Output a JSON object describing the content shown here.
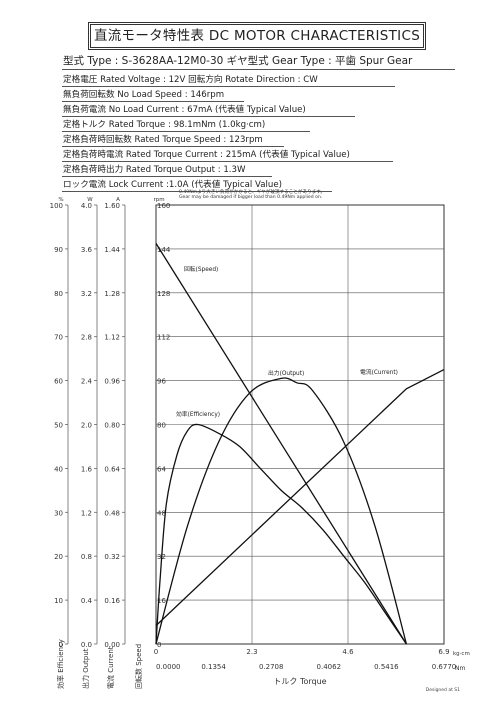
{
  "title": "直流モータ特性表 DC MOTOR CHARACTERISTICS",
  "specs": {
    "model": "型式 Type : S-3628AA-12M0-30   ギヤ型式 Gear Type : 平歯  Spur Gear",
    "lines": [
      "定格電圧 Rated Voltage : 12V   回転方向 Rotate Direction : CW",
      "無負荷回転数 No Load Speed : 146rpm",
      "無負荷電流 No Load Current : 67mA (代表値 Typical Value)",
      "定格トルク Rated Torque : 98.1mNm (1.0kg·cm)",
      "定格負荷時回転数 Rated Torque Speed : 123rpm",
      "定格負荷時電流 Rated Torque Current : 215mA (代表値 Typical Value)",
      "定格負荷時出力 Rated Torque Output : 1.3W",
      "ロック電流 Lock Current :1.0A (代表値 Typical Value)"
    ]
  },
  "notes": [
    "0.49Nmより大きい負荷がかかると、ギヤが破損することがあります。",
    "Gear may be damaged if bigger load than 0.49Nm applied on."
  ],
  "footer": "Designed at S1",
  "chart_data": {
    "type": "line",
    "x_kgcm": {
      "label": "kg·cm",
      "ticks": [
        "0",
        "2.3",
        "4.6",
        "6.9"
      ],
      "range": [
        0,
        6.9
      ]
    },
    "x_nm": {
      "label": "Nm",
      "ticks": [
        "0.0000",
        "0.1354",
        "0.2708",
        "0.4062",
        "0.5416",
        "0.6770"
      ],
      "range": [
        0,
        0.677
      ]
    },
    "xlabel": "トルク Torque",
    "axes": [
      {
        "key": "efficiency",
        "unit": "%",
        "label": "効率 Efficiency",
        "ticks": [
          "0",
          "10",
          "20",
          "30",
          "40",
          "50",
          "60",
          "70",
          "80",
          "90",
          "100"
        ],
        "range": [
          0,
          100
        ]
      },
      {
        "key": "output",
        "unit": "W",
        "label": "出力 Output",
        "ticks": [
          "0.0",
          "0.4",
          "0.8",
          "1.2",
          "1.6",
          "2.0",
          "2.4",
          "2.8",
          "3.2",
          "3.6",
          "4.0"
        ],
        "range": [
          0,
          4.0
        ]
      },
      {
        "key": "current",
        "unit": "A",
        "label": "電流 Current",
        "ticks": [
          "0.00",
          "0.16",
          "0.32",
          "0.48",
          "0.64",
          "0.80",
          "0.96",
          "1.12",
          "1.28",
          "1.44",
          "1.60"
        ],
        "range": [
          0,
          1.6
        ]
      },
      {
        "key": "speed",
        "unit": "rpm",
        "label": "回転数 Speed",
        "ticks": [
          "0",
          "16",
          "32",
          "48",
          "64",
          "80",
          "96",
          "112",
          "128",
          "144",
          "160"
        ],
        "range": [
          0,
          160
        ]
      }
    ],
    "series": [
      {
        "name": "回転(Speed)",
        "axis": "speed",
        "x_kgcm": [
          0,
          6.0
        ],
        "values": [
          146,
          0
        ]
      },
      {
        "name": "電流(Current)",
        "axis": "current",
        "x_kgcm": [
          0,
          6.0,
          6.9
        ],
        "values": [
          0.067,
          0.93,
          1.0
        ]
      },
      {
        "name": "出力(Output)",
        "axis": "output",
        "x_kgcm": [
          0,
          0.75,
          1.5,
          2.25,
          3.0,
          3.375,
          3.75,
          4.5,
          5.25,
          6.0
        ],
        "values": [
          0,
          1.07,
          1.84,
          2.29,
          2.42,
          2.38,
          2.31,
          1.84,
          1.07,
          0
        ]
      },
      {
        "name": "効率(Efficiency)",
        "axis": "efficiency",
        "x_kgcm": [
          0,
          0.1,
          0.25,
          0.5,
          0.75,
          1.0,
          1.5,
          2.0,
          2.5,
          3.0,
          3.5,
          4.0,
          4.5,
          5.0,
          5.5,
          6.0
        ],
        "values": [
          0,
          15,
          32,
          43,
          48.5,
          50,
          48,
          45,
          40,
          35,
          31,
          26,
          20,
          14,
          7,
          0
        ]
      }
    ]
  }
}
